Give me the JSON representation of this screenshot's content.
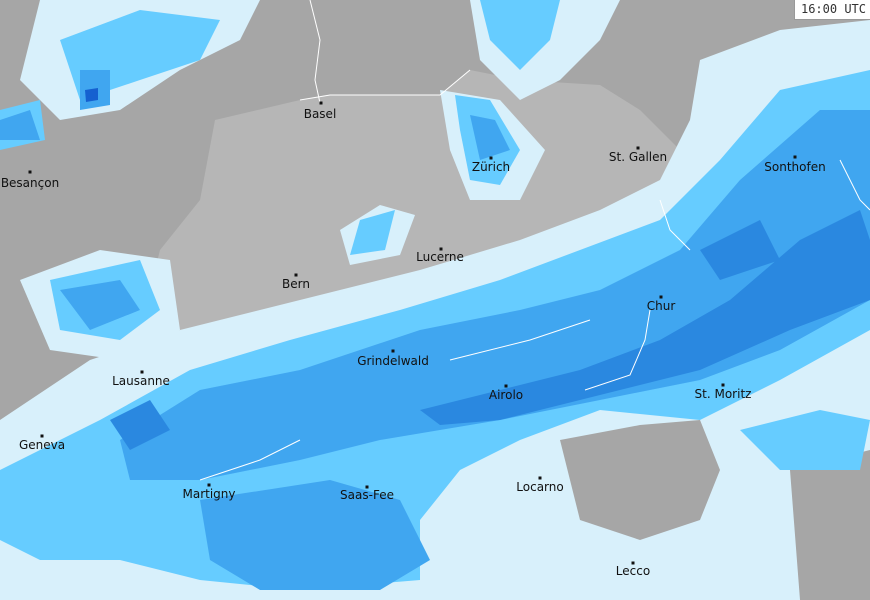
{
  "timestamp": "16:00 UTC",
  "colors": {
    "background": "#a6a6a6",
    "switzerland": "#b6b6b6",
    "precip_light": "#d8f0fb",
    "precip_cyan": "#66ccff",
    "precip_medium": "#40a6f0",
    "precip_heavy": "#2a88e0",
    "precip_intense": "#1560d0"
  },
  "cities": [
    {
      "name": "Basel"
    },
    {
      "name": "Besançon"
    },
    {
      "name": "Zürich"
    },
    {
      "name": "St. Gallen"
    },
    {
      "name": "Sonthofen"
    },
    {
      "name": "Lucerne"
    },
    {
      "name": "Bern"
    },
    {
      "name": "Chur"
    },
    {
      "name": "Grindelwald"
    },
    {
      "name": "Lausanne"
    },
    {
      "name": "Airolo"
    },
    {
      "name": "St. Moritz"
    },
    {
      "name": "Geneva"
    },
    {
      "name": "Martigny"
    },
    {
      "name": "Saas-Fee"
    },
    {
      "name": "Locarno"
    },
    {
      "name": "Lecco"
    }
  ]
}
